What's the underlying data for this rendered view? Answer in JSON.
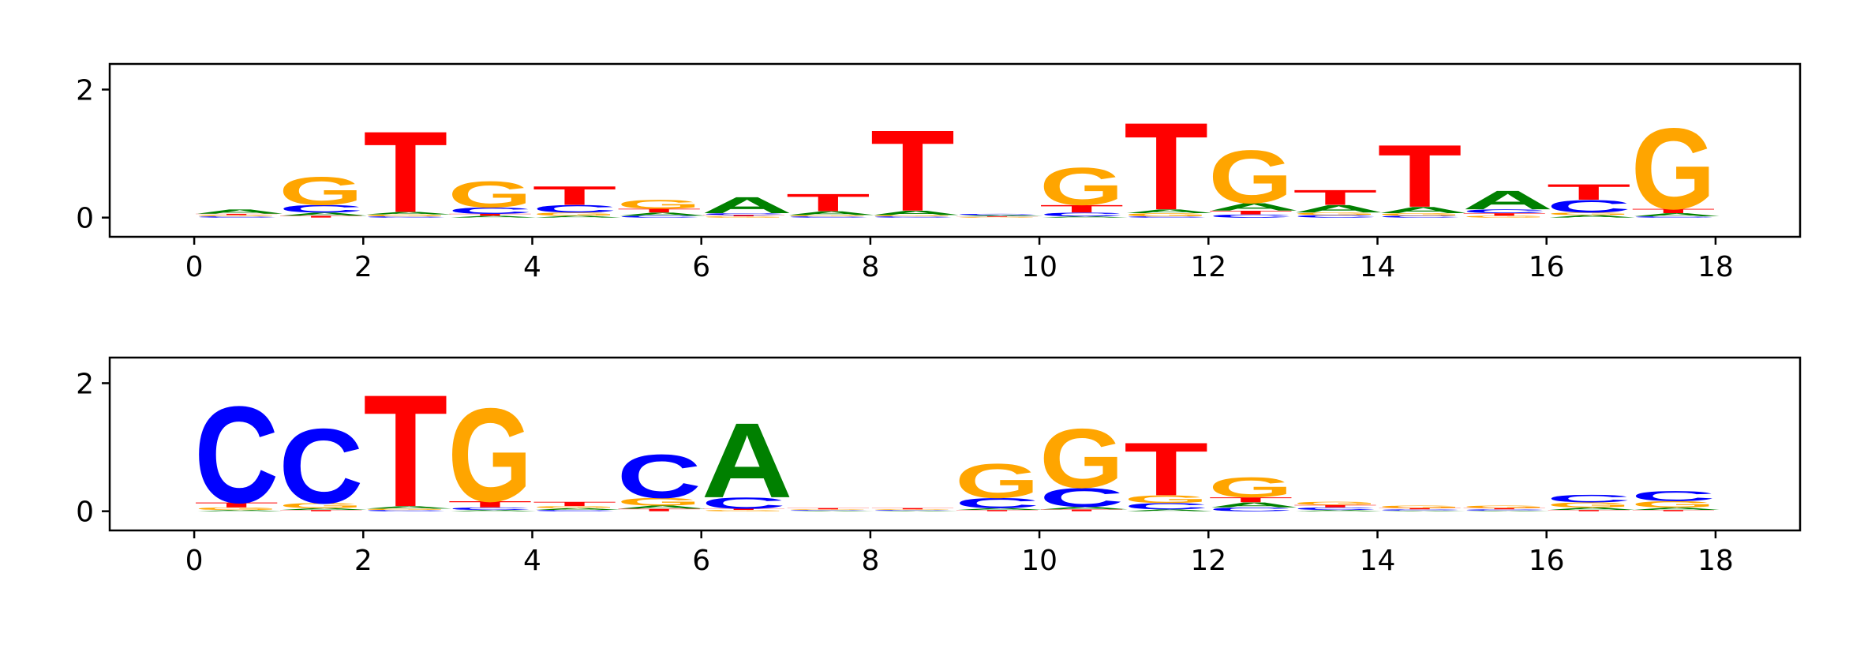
{
  "colors": {
    "A": "#008000",
    "C": "#0000ff",
    "G": "#ffa500",
    "T": "#ff0000"
  },
  "chart_data": [
    {
      "type": "sequence_logo",
      "xlim": [
        -1,
        19
      ],
      "ylim": [
        -0.3,
        2.4
      ],
      "xticks": [
        0,
        2,
        4,
        6,
        8,
        10,
        12,
        14,
        16,
        18
      ],
      "yticks": [
        0,
        2
      ],
      "positions": [
        {
          "x": 0,
          "A": 0.07,
          "C": 0.02,
          "G": 0.02,
          "T": 0.02
        },
        {
          "x": 1,
          "A": 0.05,
          "C": 0.12,
          "G": 0.45,
          "T": 0.03
        },
        {
          "x": 2,
          "A": 0.04,
          "C": 0.02,
          "G": 0.03,
          "T": 1.3
        },
        {
          "x": 3,
          "A": 0.03,
          "C": 0.1,
          "G": 0.42,
          "T": 0.03
        },
        {
          "x": 4,
          "A": 0.03,
          "C": 0.12,
          "G": 0.05,
          "T": 0.3
        },
        {
          "x": 5,
          "A": 0.05,
          "C": 0.03,
          "G": 0.14,
          "T": 0.06
        },
        {
          "x": 6,
          "A": 0.26,
          "C": 0.03,
          "G": 0.02,
          "T": 0.02
        },
        {
          "x": 7,
          "A": 0.06,
          "C": 0.02,
          "G": 0.02,
          "T": 0.28
        },
        {
          "x": 8,
          "A": 0.07,
          "C": 0.02,
          "G": 0.02,
          "T": 1.3
        },
        {
          "x": 9,
          "A": 0.02,
          "C": 0.02,
          "G": 0.01,
          "T": 0.01
        },
        {
          "x": 10,
          "A": 0.02,
          "C": 0.06,
          "G": 0.6,
          "T": 0.12
        },
        {
          "x": 11,
          "A": 0.06,
          "C": 0.02,
          "G": 0.05,
          "T": 1.4
        },
        {
          "x": 12,
          "A": 0.12,
          "C": 0.05,
          "G": 0.85,
          "T": 0.06
        },
        {
          "x": 13,
          "A": 0.12,
          "C": 0.04,
          "G": 0.04,
          "T": 0.24
        },
        {
          "x": 14,
          "A": 0.1,
          "C": 0.03,
          "G": 0.04,
          "T": 1.0
        },
        {
          "x": 15,
          "A": 0.3,
          "C": 0.06,
          "G": 0.03,
          "T": 0.04
        },
        {
          "x": 16,
          "A": 0.04,
          "C": 0.2,
          "G": 0.04,
          "T": 0.25
        },
        {
          "x": 17,
          "A": 0.05,
          "C": 0.02,
          "G": 1.3,
          "T": 0.07
        }
      ]
    },
    {
      "type": "sequence_logo",
      "xlim": [
        -1,
        19
      ],
      "ylim": [
        -0.3,
        2.4
      ],
      "xticks": [
        0,
        2,
        4,
        6,
        8,
        10,
        12,
        14,
        16,
        18
      ],
      "yticks": [
        0,
        2
      ],
      "positions": [
        {
          "x": 0,
          "A": 0.02,
          "C": 1.55,
          "G": 0.04,
          "T": 0.08
        },
        {
          "x": 1,
          "A": 0.03,
          "C": 1.2,
          "G": 0.08,
          "T": 0.02
        },
        {
          "x": 2,
          "A": 0.04,
          "C": 0.02,
          "G": 0.02,
          "T": 1.8
        },
        {
          "x": 3,
          "A": 0.02,
          "C": 0.04,
          "G": 1.5,
          "T": 0.1
        },
        {
          "x": 4,
          "A": 0.03,
          "C": 0.02,
          "G": 0.03,
          "T": 0.07
        },
        {
          "x": 5,
          "A": 0.05,
          "C": 0.7,
          "G": 0.12,
          "T": 0.04
        },
        {
          "x": 6,
          "A": 1.2,
          "C": 0.18,
          "G": 0.02,
          "T": 0.02
        },
        {
          "x": 7,
          "A": 0.01,
          "C": 0.01,
          "G": 0.01,
          "T": 0.02
        },
        {
          "x": 8,
          "A": 0.01,
          "C": 0.01,
          "G": 0.01,
          "T": 0.02
        },
        {
          "x": 9,
          "A": 0.03,
          "C": 0.16,
          "G": 0.55,
          "T": 0.02
        },
        {
          "x": 10,
          "A": 0.04,
          "C": 0.3,
          "G": 0.95,
          "T": 0.03
        },
        {
          "x": 11,
          "A": 0.03,
          "C": 0.1,
          "G": 0.12,
          "T": 0.85
        },
        {
          "x": 12,
          "A": 0.08,
          "C": 0.06,
          "G": 0.32,
          "T": 0.08
        },
        {
          "x": 13,
          "A": 0.02,
          "C": 0.04,
          "G": 0.05,
          "T": 0.04
        },
        {
          "x": 14,
          "A": 0.01,
          "C": 0.02,
          "G": 0.04,
          "T": 0.02
        },
        {
          "x": 15,
          "A": 0.01,
          "C": 0.02,
          "G": 0.04,
          "T": 0.02
        },
        {
          "x": 16,
          "A": 0.04,
          "C": 0.12,
          "G": 0.08,
          "T": 0.02
        },
        {
          "x": 17,
          "A": 0.04,
          "C": 0.16,
          "G": 0.1,
          "T": 0.02
        }
      ]
    }
  ]
}
